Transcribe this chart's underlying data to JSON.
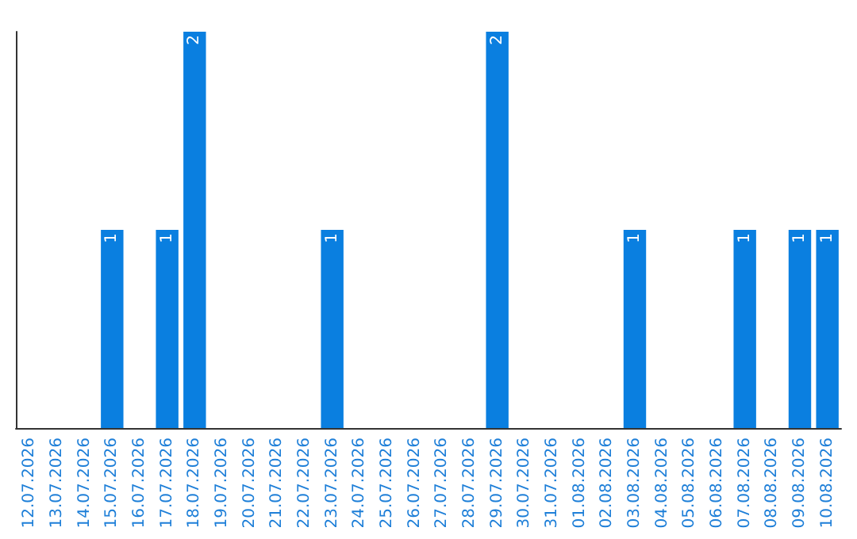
{
  "chart_data": {
    "type": "bar",
    "categories": [
      "12.07.2026",
      "13.07.2026",
      "14.07.2026",
      "15.07.2026",
      "16.07.2026",
      "17.07.2026",
      "18.07.2026",
      "19.07.2026",
      "20.07.2026",
      "21.07.2026",
      "22.07.2026",
      "23.07.2026",
      "24.07.2026",
      "25.07.2026",
      "26.07.2026",
      "27.07.2026",
      "28.07.2026",
      "29.07.2026",
      "30.07.2026",
      "31.07.2026",
      "01.08.2026",
      "02.08.2026",
      "03.08.2026",
      "04.08.2026",
      "05.08.2026",
      "06.08.2026",
      "07.08.2026",
      "08.08.2026",
      "09.08.2026",
      "10.08.2026"
    ],
    "values": [
      0,
      0,
      0,
      1,
      0,
      1,
      2,
      0,
      0,
      0,
      0,
      1,
      0,
      0,
      0,
      0,
      0,
      2,
      0,
      0,
      0,
      0,
      1,
      0,
      0,
      0,
      1,
      0,
      1,
      1
    ],
    "value_labels": [
      null,
      null,
      null,
      "1",
      null,
      "1",
      "2",
      null,
      null,
      null,
      null,
      "1",
      null,
      null,
      null,
      null,
      null,
      "2",
      null,
      null,
      null,
      null,
      "1",
      null,
      null,
      null,
      "1",
      null,
      "1",
      "1"
    ],
    "color": "#0a7fe0",
    "ylim": [
      0,
      2
    ],
    "tick_labels": "x"
  }
}
